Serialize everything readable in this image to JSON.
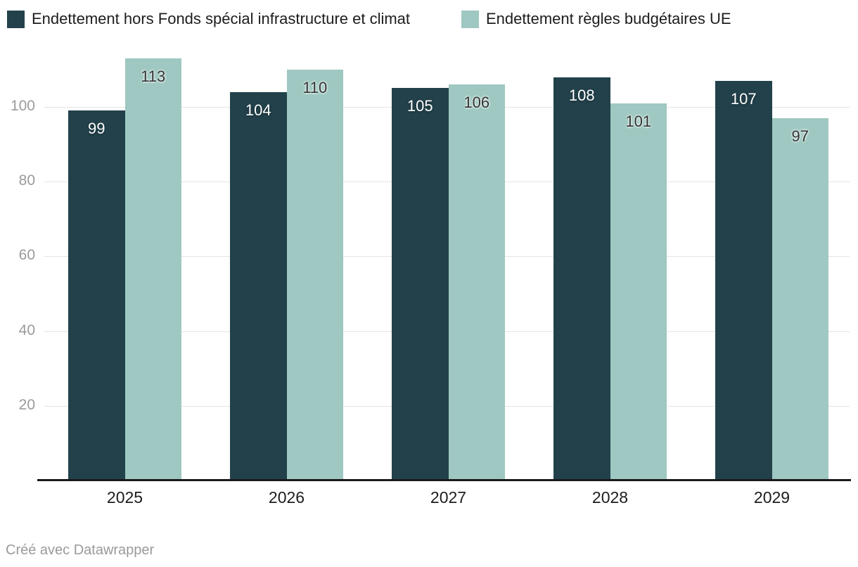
{
  "footer": {
    "text": "Créé avec Datawrapper"
  },
  "chart_data": {
    "type": "bar",
    "title": "",
    "xlabel": "",
    "ylabel": "",
    "categories": [
      "2025",
      "2026",
      "2027",
      "2028",
      "2029"
    ],
    "series": [
      {
        "name": "Endettement hors Fonds spécial infrastructure et climat",
        "color": "#22414b",
        "label_style": "on-dark",
        "values": [
          99,
          104,
          105,
          108,
          107
        ]
      },
      {
        "name": "Endettement règles budgétaires UE",
        "color": "#9ec8c1",
        "label_style": "on-light",
        "values": [
          113,
          110,
          106,
          101,
          97
        ]
      }
    ],
    "yticks": [
      20,
      40,
      60,
      80,
      100
    ],
    "ylim": [
      0,
      115
    ],
    "grid": true,
    "legend_position": "top",
    "value_labels": true
  }
}
